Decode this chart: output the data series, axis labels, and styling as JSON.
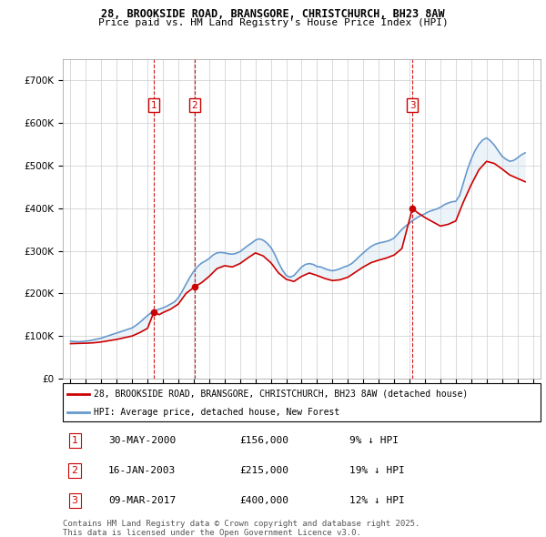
{
  "title_line1": "28, BROOKSIDE ROAD, BRANSGORE, CHRISTCHURCH, BH23 8AW",
  "title_line2": "Price paid vs. HM Land Registry's House Price Index (HPI)",
  "legend_label_red": "28, BROOKSIDE ROAD, BRANSGORE, CHRISTCHURCH, BH23 8AW (detached house)",
  "legend_label_blue": "HPI: Average price, detached house, New Forest",
  "footer_line1": "Contains HM Land Registry data © Crown copyright and database right 2025.",
  "footer_line2": "This data is licensed under the Open Government Licence v3.0.",
  "transactions": [
    {
      "num": 1,
      "date": "30-MAY-2000",
      "price": 156000,
      "pct": "9%",
      "dir": "↓",
      "year_x": 2000.41
    },
    {
      "num": 2,
      "date": "16-JAN-2003",
      "price": 215000,
      "pct": "19%",
      "dir": "↓",
      "year_x": 2003.04
    },
    {
      "num": 3,
      "date": "09-MAR-2017",
      "price": 400000,
      "pct": "12%",
      "dir": "↓",
      "year_x": 2017.19
    }
  ],
  "ylim": [
    0,
    750000
  ],
  "yticks": [
    0,
    100000,
    200000,
    300000,
    400000,
    500000,
    600000,
    700000
  ],
  "ytick_labels": [
    "£0",
    "£100K",
    "£200K",
    "£300K",
    "£400K",
    "£500K",
    "£600K",
    "£700K"
  ],
  "xlim": [
    1994.5,
    2025.5
  ],
  "xticks": [
    1995,
    1996,
    1997,
    1998,
    1999,
    2000,
    2001,
    2002,
    2003,
    2004,
    2005,
    2006,
    2007,
    2008,
    2009,
    2010,
    2011,
    2012,
    2013,
    2014,
    2015,
    2016,
    2017,
    2018,
    2019,
    2020,
    2021,
    2022,
    2023,
    2024,
    2025
  ],
  "color_red": "#cc0000",
  "color_blue": "#6699cc",
  "color_shade": "#cce0f0",
  "background": "#ffffff",
  "grid_color": "#cccccc",
  "transaction_box_color": "#cc0000",
  "hpi_data": {
    "years": [
      1995.0,
      1995.25,
      1995.5,
      1995.75,
      1996.0,
      1996.25,
      1996.5,
      1996.75,
      1997.0,
      1997.25,
      1997.5,
      1997.75,
      1998.0,
      1998.25,
      1998.5,
      1998.75,
      1999.0,
      1999.25,
      1999.5,
      1999.75,
      2000.0,
      2000.25,
      2000.5,
      2000.75,
      2001.0,
      2001.25,
      2001.5,
      2001.75,
      2002.0,
      2002.25,
      2002.5,
      2002.75,
      2003.0,
      2003.25,
      2003.5,
      2003.75,
      2004.0,
      2004.25,
      2004.5,
      2004.75,
      2005.0,
      2005.25,
      2005.5,
      2005.75,
      2006.0,
      2006.25,
      2006.5,
      2006.75,
      2007.0,
      2007.25,
      2007.5,
      2007.75,
      2008.0,
      2008.25,
      2008.5,
      2008.75,
      2009.0,
      2009.25,
      2009.5,
      2009.75,
      2010.0,
      2010.25,
      2010.5,
      2010.75,
      2011.0,
      2011.25,
      2011.5,
      2011.75,
      2012.0,
      2012.25,
      2012.5,
      2012.75,
      2013.0,
      2013.25,
      2013.5,
      2013.75,
      2014.0,
      2014.25,
      2014.5,
      2014.75,
      2015.0,
      2015.25,
      2015.5,
      2015.75,
      2016.0,
      2016.25,
      2016.5,
      2016.75,
      2017.0,
      2017.25,
      2017.5,
      2017.75,
      2018.0,
      2018.25,
      2018.5,
      2018.75,
      2019.0,
      2019.25,
      2019.5,
      2019.75,
      2020.0,
      2020.25,
      2020.5,
      2020.75,
      2021.0,
      2021.25,
      2021.5,
      2021.75,
      2022.0,
      2022.25,
      2022.5,
      2022.75,
      2023.0,
      2023.25,
      2023.5,
      2023.75,
      2024.0,
      2024.25,
      2024.5
    ],
    "values": [
      88000,
      87000,
      86500,
      87000,
      88000,
      89000,
      91000,
      93000,
      95000,
      98000,
      101000,
      104000,
      107000,
      110000,
      113000,
      116000,
      119000,
      125000,
      132000,
      140000,
      148000,
      155000,
      160000,
      163000,
      166000,
      170000,
      175000,
      180000,
      190000,
      205000,
      222000,
      238000,
      252000,
      263000,
      271000,
      276000,
      282000,
      290000,
      295000,
      296000,
      295000,
      293000,
      292000,
      294000,
      298000,
      305000,
      312000,
      318000,
      325000,
      328000,
      325000,
      318000,
      308000,
      292000,
      272000,
      255000,
      242000,
      238000,
      242000,
      252000,
      262000,
      268000,
      270000,
      268000,
      263000,
      262000,
      258000,
      255000,
      253000,
      255000,
      258000,
      262000,
      265000,
      270000,
      278000,
      287000,
      295000,
      303000,
      310000,
      315000,
      318000,
      320000,
      322000,
      325000,
      330000,
      340000,
      350000,
      358000,
      365000,
      372000,
      378000,
      383000,
      387000,
      392000,
      395000,
      398000,
      402000,
      408000,
      412000,
      415000,
      416000,
      430000,
      460000,
      490000,
      515000,
      535000,
      550000,
      560000,
      565000,
      558000,
      548000,
      535000,
      522000,
      515000,
      510000,
      512000,
      518000,
      525000,
      530000
    ]
  },
  "price_data": {
    "years": [
      1995.0,
      1995.5,
      1996.0,
      1996.5,
      1997.0,
      1997.5,
      1998.0,
      1998.5,
      1999.0,
      1999.5,
      2000.0,
      2000.41,
      2000.75,
      2001.0,
      2001.5,
      2002.0,
      2002.5,
      2003.04,
      2003.5,
      2004.0,
      2004.5,
      2005.0,
      2005.5,
      2006.0,
      2006.5,
      2007.0,
      2007.5,
      2008.0,
      2008.5,
      2009.0,
      2009.5,
      2010.0,
      2010.5,
      2011.0,
      2011.5,
      2012.0,
      2012.5,
      2013.0,
      2013.5,
      2014.0,
      2014.5,
      2015.0,
      2015.5,
      2016.0,
      2016.5,
      2017.19,
      2017.5,
      2018.0,
      2018.5,
      2019.0,
      2019.5,
      2020.0,
      2020.5,
      2021.0,
      2021.5,
      2022.0,
      2022.5,
      2023.0,
      2023.5,
      2024.0,
      2024.5
    ],
    "values": [
      82000,
      82500,
      83000,
      84000,
      86000,
      89000,
      92000,
      96000,
      100000,
      108000,
      118000,
      156000,
      150000,
      155000,
      163000,
      175000,
      200000,
      215000,
      225000,
      240000,
      258000,
      265000,
      262000,
      270000,
      283000,
      295000,
      288000,
      272000,
      248000,
      233000,
      228000,
      240000,
      248000,
      242000,
      235000,
      230000,
      232000,
      238000,
      250000,
      262000,
      272000,
      278000,
      283000,
      290000,
      305000,
      400000,
      390000,
      378000,
      368000,
      358000,
      362000,
      370000,
      415000,
      455000,
      490000,
      510000,
      505000,
      492000,
      478000,
      470000,
      462000
    ]
  }
}
